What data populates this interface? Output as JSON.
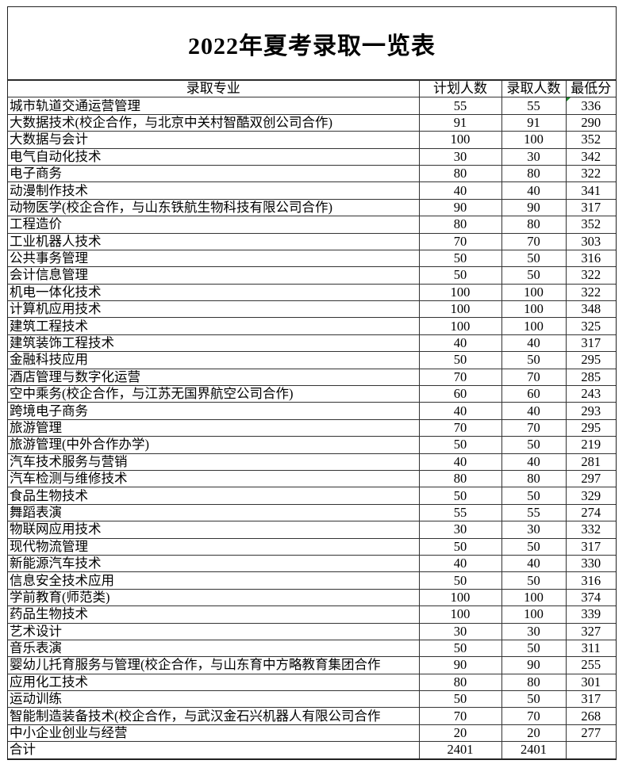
{
  "title": "2022年夏考录取一览表",
  "columns": [
    "录取专业",
    "计划人数",
    "录取人数",
    "最低分"
  ],
  "rows": [
    [
      "城市轨道交通运营管理",
      "55",
      "55",
      "336"
    ],
    [
      "大数据技术(校企合作，与北京中关村智酷双创公司合作)",
      "91",
      "91",
      "290"
    ],
    [
      "大数据与会计",
      "100",
      "100",
      "352"
    ],
    [
      "电气自动化技术",
      "30",
      "30",
      "342"
    ],
    [
      "电子商务",
      "80",
      "80",
      "322"
    ],
    [
      "动漫制作技术",
      "40",
      "40",
      "341"
    ],
    [
      "动物医学(校企合作，与山东铁航生物科技有限公司合作)",
      "90",
      "90",
      "317"
    ],
    [
      "工程造价",
      "80",
      "80",
      "352"
    ],
    [
      "工业机器人技术",
      "70",
      "70",
      "303"
    ],
    [
      "公共事务管理",
      "50",
      "50",
      "316"
    ],
    [
      "会计信息管理",
      "50",
      "50",
      "322"
    ],
    [
      "机电一体化技术",
      "100",
      "100",
      "322"
    ],
    [
      "计算机应用技术",
      "100",
      "100",
      "348"
    ],
    [
      "建筑工程技术",
      "100",
      "100",
      "325"
    ],
    [
      "建筑装饰工程技术",
      "40",
      "40",
      "317"
    ],
    [
      "金融科技应用",
      "50",
      "50",
      "295"
    ],
    [
      "酒店管理与数字化运营",
      "70",
      "70",
      "285"
    ],
    [
      "空中乘务(校企合作，与江苏无国界航空公司合作)",
      "60",
      "60",
      "243"
    ],
    [
      "跨境电子商务",
      "40",
      "40",
      "293"
    ],
    [
      "旅游管理",
      "70",
      "70",
      "295"
    ],
    [
      "旅游管理(中外合作办学)",
      "50",
      "50",
      "219"
    ],
    [
      "汽车技术服务与营销",
      "40",
      "40",
      "281"
    ],
    [
      "汽车检测与维修技术",
      "80",
      "80",
      "297"
    ],
    [
      "食品生物技术",
      "50",
      "50",
      "329"
    ],
    [
      "舞蹈表演",
      "55",
      "55",
      "274"
    ],
    [
      "物联网应用技术",
      "30",
      "30",
      "332"
    ],
    [
      "现代物流管理",
      "50",
      "50",
      "317"
    ],
    [
      "新能源汽车技术",
      "40",
      "40",
      "330"
    ],
    [
      "信息安全技术应用",
      "50",
      "50",
      "316"
    ],
    [
      "学前教育(师范类)",
      "100",
      "100",
      "374"
    ],
    [
      "药品生物技术",
      "100",
      "100",
      "339"
    ],
    [
      "艺术设计",
      "30",
      "30",
      "327"
    ],
    [
      "音乐表演",
      "50",
      "50",
      "311"
    ],
    [
      "婴幼儿托育服务与管理(校企合作，与山东育中方略教育集团合作",
      "90",
      "90",
      "255"
    ],
    [
      "应用化工技术",
      "80",
      "80",
      "301"
    ],
    [
      "运动训练",
      "50",
      "50",
      "317"
    ],
    [
      "智能制造装备技术(校企合作，与武汉金石兴机器人有限公司合作",
      "70",
      "70",
      "268"
    ],
    [
      "中小企业创业与经营",
      "20",
      "20",
      "277"
    ]
  ],
  "total": [
    "合计",
    "2401",
    "2401",
    ""
  ]
}
